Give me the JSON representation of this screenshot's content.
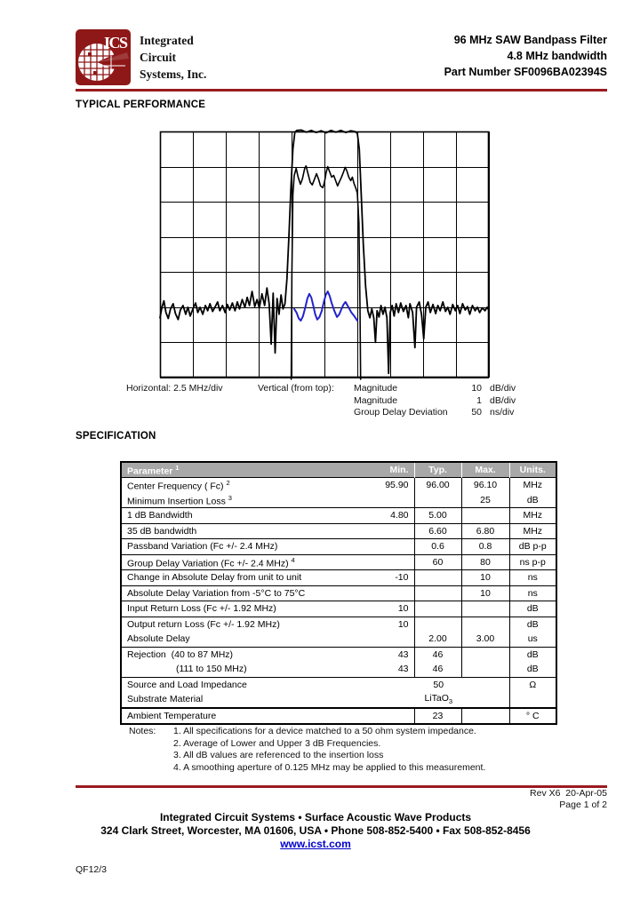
{
  "header": {
    "logo_text": "ICS",
    "company_lines": [
      "Integrated",
      "Circuit",
      "Systems, Inc."
    ],
    "title_lines": [
      "96 MHz SAW Bandpass Filter",
      "4.8 MHz bandwidth",
      "Part Number SF0096BA02394S"
    ]
  },
  "colors": {
    "maroon": "#9a1b1f",
    "logo_red": "#8e1818",
    "table_header_gray": "#a8a8a8",
    "trace_blue": "#2323cc",
    "link_blue": "#0000cc"
  },
  "sections": {
    "performance_title": "TYPICAL PERFORMANCE",
    "specification_title": "SPECIFICATION"
  },
  "chart_legend": {
    "horizontal_label": "Horizontal: 2.5 MHz/div",
    "vertical_label": "Vertical (from top):",
    "entries": [
      {
        "name": "Magnitude",
        "value": "10",
        "unit": "dB/div"
      },
      {
        "name": "Magnitude",
        "value": "1",
        "unit": "dB/div"
      },
      {
        "name": "Group Delay Deviation",
        "value": "50",
        "unit": "ns/div"
      }
    ]
  },
  "chart_data": {
    "type": "line",
    "title": "Typical performance frequency response",
    "x_units": "divisions (2.5 MHz/div, center ~96 MHz)",
    "y_units": "divisions from top",
    "grid": {
      "cols": 10,
      "rows": 7
    },
    "series": [
      {
        "name": "Magnitude (10 dB/div)",
        "color": "#000000",
        "width": 1.8,
        "points": [
          [
            0,
            5.3
          ],
          [
            0.06,
            5.0
          ],
          [
            0.12,
            4.82
          ],
          [
            0.18,
            5.15
          ],
          [
            0.25,
            5.32
          ],
          [
            0.32,
            5.05
          ],
          [
            0.4,
            4.9
          ],
          [
            0.47,
            5.18
          ],
          [
            0.55,
            5.35
          ],
          [
            0.62,
            5.08
          ],
          [
            0.7,
            4.95
          ],
          [
            0.78,
            5.2
          ],
          [
            0.85,
            5.0
          ],
          [
            0.92,
            5.25
          ],
          [
            1.0,
            5.05
          ],
          [
            1.08,
            4.88
          ],
          [
            1.15,
            5.15
          ],
          [
            1.22,
            5.0
          ],
          [
            1.3,
            5.2
          ],
          [
            1.38,
            4.95
          ],
          [
            1.45,
            5.1
          ],
          [
            1.52,
            4.9
          ],
          [
            1.6,
            5.12
          ],
          [
            1.68,
            4.98
          ],
          [
            1.75,
            4.85
          ],
          [
            1.82,
            5.1
          ],
          [
            1.9,
            4.95
          ],
          [
            1.98,
            5.15
          ],
          [
            2.05,
            4.92
          ],
          [
            2.12,
            5.08
          ],
          [
            2.2,
            4.88
          ],
          [
            2.28,
            5.1
          ],
          [
            2.35,
            4.85
          ],
          [
            2.42,
            5.05
          ],
          [
            2.5,
            4.78
          ],
          [
            2.58,
            5.0
          ],
          [
            2.65,
            4.72
          ],
          [
            2.72,
            4.95
          ],
          [
            2.8,
            4.55
          ],
          [
            2.88,
            4.98
          ],
          [
            2.95,
            4.78
          ],
          [
            3.02,
            5.02
          ],
          [
            3.1,
            4.62
          ],
          [
            3.18,
            4.95
          ],
          [
            3.25,
            4.45
          ],
          [
            3.32,
            4.9
          ],
          [
            3.38,
            6.05
          ],
          [
            3.44,
            4.6
          ],
          [
            3.5,
            6.3
          ],
          [
            3.56,
            4.75
          ],
          [
            3.62,
            5.2
          ],
          [
            3.68,
            4.65
          ],
          [
            3.74,
            5.05
          ],
          [
            3.8,
            4.9
          ],
          [
            3.86,
            4.2
          ],
          [
            3.92,
            3.0
          ],
          [
            3.98,
            1.6
          ],
          [
            4.04,
            0.5
          ],
          [
            4.1,
            0.02
          ],
          [
            4.16,
            -0.03
          ],
          [
            4.3,
            -0.04
          ],
          [
            4.45,
            0.02
          ],
          [
            4.6,
            -0.03
          ],
          [
            4.75,
            0.03
          ],
          [
            4.9,
            -0.02
          ],
          [
            5.05,
            0.04
          ],
          [
            5.2,
            -0.03
          ],
          [
            5.35,
            0.02
          ],
          [
            5.5,
            -0.03
          ],
          [
            5.65,
            0.03
          ],
          [
            5.8,
            -0.02
          ],
          [
            5.92,
            0.0
          ],
          [
            6.0,
            0.05
          ],
          [
            6.06,
            0.5
          ],
          [
            6.12,
            1.8
          ],
          [
            6.18,
            3.2
          ],
          [
            6.25,
            4.4
          ],
          [
            6.32,
            5.1
          ],
          [
            6.38,
            5.3
          ],
          [
            6.44,
            5.05
          ],
          [
            6.5,
            5.3
          ],
          [
            6.55,
            6.0
          ],
          [
            6.6,
            5.1
          ],
          [
            6.66,
            5.28
          ],
          [
            6.72,
            4.95
          ],
          [
            6.78,
            5.2
          ],
          [
            6.84,
            5.0
          ],
          [
            6.9,
            5.3
          ],
          [
            6.95,
            6.88
          ],
          [
            7.0,
            5.15
          ],
          [
            7.06,
            4.95
          ],
          [
            7.12,
            5.25
          ],
          [
            7.18,
            4.9
          ],
          [
            7.25,
            5.15
          ],
          [
            7.32,
            4.88
          ],
          [
            7.4,
            5.12
          ],
          [
            7.48,
            4.95
          ],
          [
            7.55,
            5.3
          ],
          [
            7.6,
            4.9
          ],
          [
            7.68,
            5.15
          ],
          [
            7.75,
            6.15
          ],
          [
            7.8,
            5.0
          ],
          [
            7.88,
            4.85
          ],
          [
            7.95,
            5.2
          ],
          [
            8.02,
            5.9
          ],
          [
            8.08,
            5.0
          ],
          [
            8.15,
            4.85
          ],
          [
            8.22,
            5.15
          ],
          [
            8.3,
            4.92
          ],
          [
            8.38,
            5.18
          ],
          [
            8.45,
            4.95
          ],
          [
            8.52,
            5.1
          ],
          [
            8.6,
            4.85
          ],
          [
            8.68,
            5.12
          ],
          [
            8.75,
            5.0
          ],
          [
            8.82,
            5.2
          ],
          [
            8.9,
            4.92
          ],
          [
            8.98,
            5.1
          ],
          [
            9.05,
            4.95
          ],
          [
            9.12,
            5.18
          ],
          [
            9.2,
            4.9
          ],
          [
            9.28,
            5.08
          ],
          [
            9.35,
            4.98
          ],
          [
            9.42,
            5.2
          ],
          [
            9.5,
            4.95
          ],
          [
            9.58,
            5.1
          ],
          [
            9.65,
            5.0
          ],
          [
            9.72,
            5.15
          ],
          [
            9.8,
            5.02
          ],
          [
            9.88,
            5.1
          ],
          [
            9.95,
            5.0
          ],
          [
            10,
            5.08
          ]
        ]
      },
      {
        "name": "Magnitude (1 dB/div)",
        "color": "#000000",
        "width": 1.6,
        "points": [
          [
            3.99,
            7.05
          ],
          [
            4.01,
            4.0
          ],
          [
            4.04,
            1.8
          ],
          [
            4.08,
            1.25
          ],
          [
            4.14,
            1.05
          ],
          [
            4.2,
            1.3
          ],
          [
            4.27,
            1.5
          ],
          [
            4.33,
            1.35
          ],
          [
            4.4,
            1.05
          ],
          [
            4.44,
            0.98
          ],
          [
            4.5,
            1.2
          ],
          [
            4.57,
            1.45
          ],
          [
            4.63,
            1.52
          ],
          [
            4.7,
            1.35
          ],
          [
            4.76,
            1.2
          ],
          [
            4.82,
            1.35
          ],
          [
            4.88,
            1.55
          ],
          [
            4.95,
            1.6
          ],
          [
            5.0,
            1.45
          ],
          [
            5.05,
            1.18
          ],
          [
            5.1,
            1.0
          ],
          [
            5.16,
            1.15
          ],
          [
            5.22,
            1.3
          ],
          [
            5.28,
            1.25
          ],
          [
            5.34,
            1.4
          ],
          [
            5.4,
            1.55
          ],
          [
            5.46,
            1.42
          ],
          [
            5.52,
            1.3
          ],
          [
            5.58,
            1.15
          ],
          [
            5.63,
            1.02
          ],
          [
            5.68,
            1.12
          ],
          [
            5.74,
            1.3
          ],
          [
            5.8,
            1.4
          ],
          [
            5.85,
            1.3
          ],
          [
            5.9,
            1.48
          ],
          [
            5.95,
            1.6
          ],
          [
            6.0,
            1.75
          ],
          [
            6.05,
            2.6
          ],
          [
            6.08,
            5.0
          ],
          [
            6.1,
            7.05
          ]
        ]
      },
      {
        "name": "Group Delay Deviation (50 ns/div)",
        "color": "#2323cc",
        "width": 2,
        "points": [
          [
            4.08,
            5.05
          ],
          [
            4.15,
            5.15
          ],
          [
            4.22,
            5.32
          ],
          [
            4.28,
            5.38
          ],
          [
            4.35,
            5.25
          ],
          [
            4.42,
            5.0
          ],
          [
            4.48,
            4.75
          ],
          [
            4.54,
            4.62
          ],
          [
            4.6,
            4.72
          ],
          [
            4.66,
            4.95
          ],
          [
            4.72,
            5.2
          ],
          [
            4.78,
            5.35
          ],
          [
            4.85,
            5.28
          ],
          [
            4.92,
            5.1
          ],
          [
            4.98,
            4.85
          ],
          [
            5.04,
            4.65
          ],
          [
            5.1,
            4.55
          ],
          [
            5.16,
            4.68
          ],
          [
            5.22,
            4.88
          ],
          [
            5.3,
            5.1
          ],
          [
            5.38,
            5.28
          ],
          [
            5.45,
            5.2
          ],
          [
            5.52,
            5.05
          ],
          [
            5.58,
            4.92
          ],
          [
            5.64,
            4.85
          ],
          [
            5.7,
            4.95
          ],
          [
            5.76,
            5.05
          ],
          [
            5.82,
            5.15
          ],
          [
            5.88,
            5.22
          ],
          [
            5.94,
            5.3
          ],
          [
            6.0,
            5.38
          ]
        ]
      }
    ]
  },
  "spec_table": {
    "headers": {
      "param": "Parameter",
      "param_sup": "1",
      "min": "Min.",
      "typ": "Typ.",
      "max": "Max.",
      "units": "Units."
    },
    "rows": [
      {
        "param": "Center Frequency ( Fc)",
        "sup": "2",
        "min": "95.90",
        "typ": "96.00",
        "max": "96.10",
        "units": "MHz"
      },
      {
        "param": "Minimum Insertion Loss",
        "sup": "3",
        "min": "",
        "typ": "",
        "max": "25",
        "units": "dB",
        "cont": true
      },
      {
        "param": "1 dB Bandwidth",
        "min": "4.80",
        "typ": "5.00",
        "max": "",
        "units": "MHz"
      },
      {
        "param": "35 dB bandwidth",
        "min": "",
        "typ": "6.60",
        "max": "6.80",
        "units": "MHz"
      },
      {
        "param": "Passband Variation (Fc +/- 2.4 MHz)",
        "min": "",
        "typ": "0.6",
        "max": "0.8",
        "units": "dB p-p"
      },
      {
        "param": "Group Delay Variation (Fc +/- 2.4 MHz)",
        "sup": "4",
        "min": "",
        "typ": "60",
        "max": "80",
        "units": "ns p-p"
      },
      {
        "param": "Change in Absolute Delay from unit to unit",
        "min": "-10",
        "typ": "",
        "max": "10",
        "units": "ns"
      },
      {
        "param": "Absolute Delay Variation from -5°C to 75°C",
        "min": "",
        "typ": "",
        "max": "10",
        "units": "ns"
      },
      {
        "param": "Input Return Loss (Fc +/- 1.92 MHz)",
        "min": "10",
        "typ": "",
        "max": "",
        "units": "dB"
      },
      {
        "param": "Output return Loss (Fc +/- 1.92 MHz)",
        "min": "10",
        "typ": "",
        "max": "",
        "units": "dB"
      },
      {
        "param": "Absolute Delay",
        "min": "",
        "typ": "2.00",
        "max": "3.00",
        "units": "us",
        "cont": true
      },
      {
        "param": "Rejection  (40 to 87 MHz)",
        "min": "43",
        "typ": "46",
        "max": "",
        "units": "dB"
      },
      {
        "param": "(111 to 150 MHz)",
        "indent": true,
        "min": "43",
        "typ": "46",
        "max": "",
        "units": "dB",
        "cont": true
      },
      {
        "param": "Source and Load Impedance",
        "merged_value": "50",
        "units": "Ω"
      },
      {
        "param": "Substrate Material",
        "merged_value": "LiTaO",
        "merged_sub": "3",
        "units": "",
        "cont": true
      },
      {
        "param": "Ambient Temperature",
        "min": "",
        "typ": "23",
        "max": "",
        "units": "° C",
        "thick": true
      }
    ]
  },
  "notes": {
    "label": "Notes:",
    "items": [
      "1. All specifications for a device matched to a 50 ohm system impedance.",
      "2. Average of Lower and Upper 3 dB Frequencies.",
      "3. All dB values are referenced to the insertion loss",
      "4. A smoothing aperture of 0.125 MHz may be applied to this measurement."
    ]
  },
  "footer": {
    "rev": "Rev X6  20-Apr-05",
    "page": "Page 1 of 2",
    "line1": "Integrated Circuit Systems • Surface Acoustic Wave Products",
    "line2": "324 Clark Street, Worcester, MA 01606, USA • Phone 508-852-5400 • Fax 508-852-8456",
    "link": "www.icst.com",
    "form_number": "QF12/3"
  }
}
